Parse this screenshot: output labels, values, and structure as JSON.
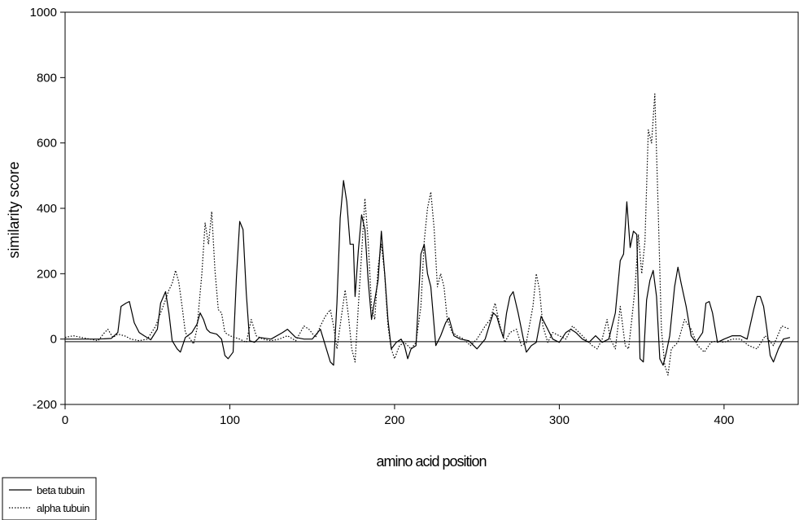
{
  "chart_data": {
    "type": "line",
    "title": "",
    "xlabel": "amino acid position",
    "ylabel": "similarity score",
    "xlim": [
      0,
      445
    ],
    "ylim": [
      -200,
      1000
    ],
    "xticks": [
      0,
      100,
      200,
      300,
      400
    ],
    "yticks": [
      -200,
      0,
      200,
      400,
      600,
      800,
      1000
    ],
    "grid": false,
    "legend_position": "bottom-left",
    "reference_line_y": -8,
    "series": [
      {
        "name": "beta tubuin",
        "style": "solid",
        "color": "#000000",
        "points": [
          [
            0,
            0
          ],
          [
            20,
            0
          ],
          [
            28,
            2
          ],
          [
            32,
            20
          ],
          [
            34,
            100
          ],
          [
            37,
            110
          ],
          [
            39,
            115
          ],
          [
            42,
            50
          ],
          [
            45,
            20
          ],
          [
            48,
            10
          ],
          [
            52,
            -2
          ],
          [
            56,
            30
          ],
          [
            58,
            110
          ],
          [
            61,
            145
          ],
          [
            63,
            80
          ],
          [
            65,
            -5
          ],
          [
            68,
            -30
          ],
          [
            70,
            -40
          ],
          [
            73,
            5
          ],
          [
            77,
            20
          ],
          [
            80,
            45
          ],
          [
            82,
            80
          ],
          [
            84,
            60
          ],
          [
            86,
            30
          ],
          [
            88,
            20
          ],
          [
            92,
            15
          ],
          [
            95,
            0
          ],
          [
            97,
            -50
          ],
          [
            99,
            -60
          ],
          [
            102,
            -40
          ],
          [
            104,
            190
          ],
          [
            106,
            360
          ],
          [
            108,
            335
          ],
          [
            110,
            140
          ],
          [
            112,
            -5
          ],
          [
            115,
            -10
          ],
          [
            118,
            5
          ],
          [
            125,
            0
          ],
          [
            132,
            20
          ],
          [
            135,
            30
          ],
          [
            140,
            5
          ],
          [
            145,
            0
          ],
          [
            150,
            0
          ],
          [
            155,
            30
          ],
          [
            158,
            -20
          ],
          [
            161,
            -70
          ],
          [
            163,
            -80
          ],
          [
            165,
            110
          ],
          [
            167,
            370
          ],
          [
            169,
            485
          ],
          [
            171,
            420
          ],
          [
            173,
            290
          ],
          [
            175,
            290
          ],
          [
            176,
            130
          ],
          [
            178,
            270
          ],
          [
            180,
            380
          ],
          [
            182,
            335
          ],
          [
            184,
            180
          ],
          [
            186,
            60
          ],
          [
            188,
            120
          ],
          [
            190,
            180
          ],
          [
            192,
            330
          ],
          [
            194,
            200
          ],
          [
            196,
            60
          ],
          [
            198,
            -30
          ],
          [
            201,
            -10
          ],
          [
            204,
            0
          ],
          [
            206,
            -20
          ],
          [
            208,
            -60
          ],
          [
            210,
            -30
          ],
          [
            213,
            -20
          ],
          [
            216,
            260
          ],
          [
            218,
            290
          ],
          [
            220,
            200
          ],
          [
            222,
            160
          ],
          [
            225,
            -20
          ],
          [
            228,
            10
          ],
          [
            231,
            50
          ],
          [
            233,
            65
          ],
          [
            236,
            10
          ],
          [
            240,
            0
          ],
          [
            245,
            -5
          ],
          [
            250,
            -30
          ],
          [
            255,
            0
          ],
          [
            258,
            50
          ],
          [
            260,
            80
          ],
          [
            262,
            70
          ],
          [
            264,
            35
          ],
          [
            266,
            5
          ],
          [
            268,
            80
          ],
          [
            270,
            130
          ],
          [
            272,
            145
          ],
          [
            275,
            80
          ],
          [
            278,
            5
          ],
          [
            280,
            -40
          ],
          [
            283,
            -20
          ],
          [
            286,
            -10
          ],
          [
            289,
            70
          ],
          [
            292,
            40
          ],
          [
            296,
            0
          ],
          [
            300,
            -10
          ],
          [
            304,
            20
          ],
          [
            307,
            30
          ],
          [
            310,
            20
          ],
          [
            314,
            0
          ],
          [
            318,
            -10
          ],
          [
            322,
            10
          ],
          [
            326,
            -10
          ],
          [
            330,
            0
          ],
          [
            334,
            80
          ],
          [
            337,
            240
          ],
          [
            339,
            260
          ],
          [
            341,
            420
          ],
          [
            343,
            280
          ],
          [
            345,
            330
          ],
          [
            347,
            320
          ],
          [
            349,
            -60
          ],
          [
            351,
            -70
          ],
          [
            353,
            120
          ],
          [
            355,
            180
          ],
          [
            357,
            210
          ],
          [
            359,
            130
          ],
          [
            361,
            -60
          ],
          [
            363,
            -80
          ],
          [
            365,
            -40
          ],
          [
            367,
            10
          ],
          [
            370,
            160
          ],
          [
            372,
            220
          ],
          [
            374,
            170
          ],
          [
            377,
            100
          ],
          [
            380,
            10
          ],
          [
            383,
            -10
          ],
          [
            387,
            20
          ],
          [
            389,
            110
          ],
          [
            391,
            115
          ],
          [
            393,
            80
          ],
          [
            396,
            -10
          ],
          [
            400,
            0
          ],
          [
            405,
            10
          ],
          [
            410,
            10
          ],
          [
            414,
            0
          ],
          [
            418,
            90
          ],
          [
            420,
            130
          ],
          [
            422,
            130
          ],
          [
            424,
            100
          ],
          [
            426,
            30
          ],
          [
            428,
            -50
          ],
          [
            430,
            -70
          ],
          [
            433,
            -30
          ],
          [
            436,
            0
          ],
          [
            440,
            5
          ]
        ]
      },
      {
        "name": "alpha tubuin",
        "style": "dotted",
        "color": "#000000",
        "points": [
          [
            0,
            5
          ],
          [
            5,
            10
          ],
          [
            10,
            5
          ],
          [
            15,
            0
          ],
          [
            20,
            -5
          ],
          [
            24,
            20
          ],
          [
            26,
            30
          ],
          [
            29,
            5
          ],
          [
            32,
            15
          ],
          [
            36,
            10
          ],
          [
            40,
            0
          ],
          [
            45,
            -5
          ],
          [
            50,
            0
          ],
          [
            55,
            40
          ],
          [
            58,
            80
          ],
          [
            61,
            120
          ],
          [
            63,
            150
          ],
          [
            65,
            170
          ],
          [
            67,
            210
          ],
          [
            69,
            175
          ],
          [
            71,
            100
          ],
          [
            73,
            20
          ],
          [
            76,
            0
          ],
          [
            78,
            -15
          ],
          [
            80,
            30
          ],
          [
            83,
            200
          ],
          [
            85,
            355
          ],
          [
            87,
            290
          ],
          [
            89,
            390
          ],
          [
            91,
            210
          ],
          [
            93,
            90
          ],
          [
            95,
            80
          ],
          [
            97,
            20
          ],
          [
            100,
            10
          ],
          [
            103,
            5
          ],
          [
            106,
            0
          ],
          [
            110,
            -10
          ],
          [
            113,
            60
          ],
          [
            116,
            10
          ],
          [
            120,
            0
          ],
          [
            125,
            -5
          ],
          [
            130,
            0
          ],
          [
            135,
            10
          ],
          [
            140,
            -5
          ],
          [
            145,
            40
          ],
          [
            148,
            30
          ],
          [
            152,
            5
          ],
          [
            155,
            40
          ],
          [
            158,
            70
          ],
          [
            161,
            90
          ],
          [
            163,
            40
          ],
          [
            165,
            -30
          ],
          [
            168,
            80
          ],
          [
            170,
            150
          ],
          [
            172,
            70
          ],
          [
            174,
            -30
          ],
          [
            176,
            -70
          ],
          [
            178,
            100
          ],
          [
            180,
            260
          ],
          [
            182,
            430
          ],
          [
            184,
            300
          ],
          [
            186,
            100
          ],
          [
            188,
            60
          ],
          [
            190,
            220
          ],
          [
            192,
            290
          ],
          [
            194,
            200
          ],
          [
            196,
            40
          ],
          [
            198,
            -30
          ],
          [
            200,
            -60
          ],
          [
            203,
            -20
          ],
          [
            206,
            -10
          ],
          [
            210,
            -30
          ],
          [
            213,
            -10
          ],
          [
            216,
            100
          ],
          [
            218,
            300
          ],
          [
            220,
            400
          ],
          [
            222,
            450
          ],
          [
            224,
            340
          ],
          [
            226,
            160
          ],
          [
            228,
            200
          ],
          [
            230,
            160
          ],
          [
            232,
            60
          ],
          [
            235,
            20
          ],
          [
            238,
            10
          ],
          [
            242,
            0
          ],
          [
            246,
            -20
          ],
          [
            250,
            0
          ],
          [
            255,
            40
          ],
          [
            258,
            60
          ],
          [
            261,
            110
          ],
          [
            264,
            40
          ],
          [
            267,
            -10
          ],
          [
            270,
            20
          ],
          [
            274,
            30
          ],
          [
            277,
            -20
          ],
          [
            280,
            -10
          ],
          [
            284,
            100
          ],
          [
            286,
            200
          ],
          [
            288,
            150
          ],
          [
            290,
            40
          ],
          [
            293,
            -10
          ],
          [
            296,
            20
          ],
          [
            300,
            10
          ],
          [
            304,
            0
          ],
          [
            308,
            40
          ],
          [
            312,
            20
          ],
          [
            316,
            0
          ],
          [
            320,
            -20
          ],
          [
            323,
            -30
          ],
          [
            326,
            0
          ],
          [
            329,
            60
          ],
          [
            331,
            0
          ],
          [
            334,
            -30
          ],
          [
            337,
            100
          ],
          [
            340,
            -20
          ],
          [
            342,
            -30
          ],
          [
            344,
            60
          ],
          [
            346,
            160
          ],
          [
            348,
            320
          ],
          [
            350,
            200
          ],
          [
            352,
            300
          ],
          [
            354,
            640
          ],
          [
            356,
            600
          ],
          [
            358,
            750
          ],
          [
            360,
            400
          ],
          [
            362,
            30
          ],
          [
            364,
            -80
          ],
          [
            366,
            -110
          ],
          [
            368,
            -30
          ],
          [
            372,
            -10
          ],
          [
            376,
            60
          ],
          [
            380,
            30
          ],
          [
            384,
            -20
          ],
          [
            388,
            -40
          ],
          [
            392,
            -10
          ],
          [
            396,
            -5
          ],
          [
            400,
            -10
          ],
          [
            405,
            0
          ],
          [
            410,
            0
          ],
          [
            415,
            -20
          ],
          [
            420,
            -30
          ],
          [
            425,
            10
          ],
          [
            430,
            -20
          ],
          [
            435,
            40
          ],
          [
            440,
            30
          ]
        ]
      }
    ]
  }
}
